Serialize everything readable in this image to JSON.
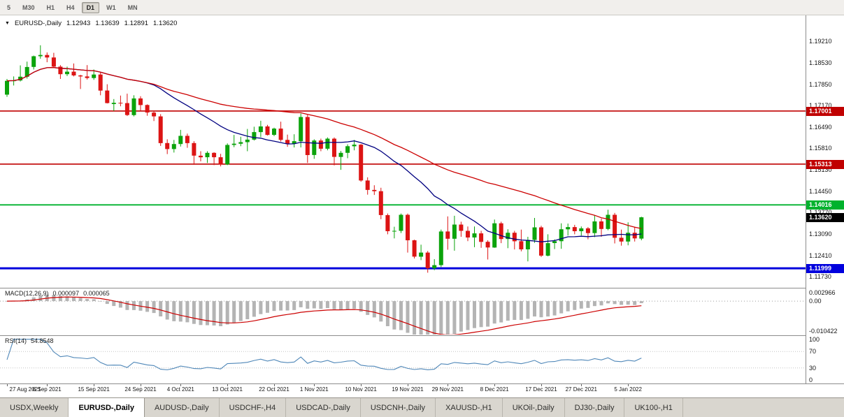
{
  "toolbar": {
    "timeframes": [
      {
        "label": "5",
        "active": false
      },
      {
        "label": "M30",
        "active": false
      },
      {
        "label": "H1",
        "active": false
      },
      {
        "label": "H4",
        "active": false
      },
      {
        "label": "D1",
        "active": true
      },
      {
        "label": "W1",
        "active": false
      },
      {
        "label": "MN",
        "active": false
      }
    ]
  },
  "chart_title": {
    "dropdown_icon": "▼",
    "symbol": "EURUSD-,Daily",
    "open": "1.12943",
    "high": "1.13639",
    "low": "1.12891",
    "close": "1.13620"
  },
  "macd_panel": {
    "label": "MACD(12,26,9)",
    "main_value": "0.000097",
    "signal_value": "0.000065",
    "axis_top": "0.002966",
    "axis_zero": "0.00",
    "axis_bottom": "-0.010422"
  },
  "rsi_panel": {
    "label": "RSI(14)",
    "value": "54.8548",
    "axis": [
      {
        "text": "100",
        "value": 100
      },
      {
        "text": "70",
        "value": 70
      },
      {
        "text": "30",
        "value": 30
      },
      {
        "text": "0",
        "value": 0
      }
    ]
  },
  "price_axis": {
    "ticks": [
      "1.19210",
      "1.18530",
      "1.17850",
      "1.17170",
      "1.16490",
      "1.15810",
      "1.15130",
      "1.14450",
      "1.13770",
      "1.13090",
      "1.12410",
      "1.11730"
    ]
  },
  "current_price": {
    "label": "1.13620",
    "value": 1.1362,
    "bg": "#000000"
  },
  "date_axis": [
    {
      "text": "27 Aug 2021",
      "i": 0
    },
    {
      "text": "6 Sep 2021",
      "i": 6
    },
    {
      "text": "15 Sep 2021",
      "i": 13
    },
    {
      "text": "24 Sep 2021",
      "i": 20
    },
    {
      "text": "4 Oct 2021",
      "i": 26
    },
    {
      "text": "13 Oct 2021",
      "i": 33
    },
    {
      "text": "22 Oct 2021",
      "i": 40
    },
    {
      "text": "1 Nov 2021",
      "i": 46
    },
    {
      "text": "10 Nov 2021",
      "i": 53
    },
    {
      "text": "19 Nov 2021",
      "i": 60
    },
    {
      "text": "29 Nov 2021",
      "i": 66
    },
    {
      "text": "8 Dec 2021",
      "i": 73
    },
    {
      "text": "17 Dec 2021",
      "i": 80
    },
    {
      "text": "27 Dec 2021",
      "i": 86
    },
    {
      "text": "5 Jan 2022",
      "i": 93
    }
  ],
  "tabs": [
    {
      "label": "USDX,Weekly",
      "active": false
    },
    {
      "label": "EURUSD-,Daily",
      "active": true
    },
    {
      "label": "AUDUSD-,Daily",
      "active": false
    },
    {
      "label": "USDCHF-,H4",
      "active": false
    },
    {
      "label": "USDCAD-,Daily",
      "active": false
    },
    {
      "label": "USDCNH-,Daily",
      "active": false
    },
    {
      "label": "XAUUSD-,H1",
      "active": false
    },
    {
      "label": "UKOil-,Daily",
      "active": false
    },
    {
      "label": "DJ30-,Daily",
      "active": false
    },
    {
      "label": "UK100-,H1",
      "active": false
    }
  ],
  "chart_data": {
    "type": "candlestick",
    "symbol": "EURUSD",
    "timeframe": "Daily",
    "ohlc_current": {
      "open": 1.12943,
      "high": 1.13639,
      "low": 1.12891,
      "close": 1.1362
    },
    "price_range": {
      "top": 1.2004,
      "bottom": 1.1138
    },
    "colors": {
      "up": "#0ba30b",
      "down": "#dc1414"
    },
    "moving_averages": [
      {
        "period": 20,
        "color": "#000080"
      },
      {
        "period": 45,
        "color": "#cc0000"
      }
    ],
    "levels": [
      {
        "price": 1.17001,
        "label": "1.17001",
        "color": "#c00000",
        "width": 1.6
      },
      {
        "price": 1.15313,
        "label": "1.15313",
        "color": "#c00000",
        "width": 1.6
      },
      {
        "price": 1.14016,
        "label": "1.14016",
        "color": "#00b22d",
        "width": 1.8
      },
      {
        "price": 1.11999,
        "label": "1.11999",
        "color": "#0000dd",
        "width": 3
      }
    ],
    "macd": {
      "fast": 12,
      "slow": 26,
      "signal": 9,
      "histogram_color": "#b4b4b4",
      "signal_color": "#cc0000",
      "range": {
        "max": 0.0032,
        "min": -0.0085
      }
    },
    "rsi": {
      "period": 14,
      "color": "#4f87b8",
      "levels": [
        70,
        30
      ]
    },
    "candles": [
      [
        1.1752,
        1.1802,
        1.1745,
        1.1796
      ],
      [
        1.1796,
        1.181,
        1.1781,
        1.1797
      ],
      [
        1.1797,
        1.1845,
        1.1794,
        1.1809
      ],
      [
        1.1809,
        1.1857,
        1.1803,
        1.184
      ],
      [
        1.184,
        1.1876,
        1.1832,
        1.1874
      ],
      [
        1.1874,
        1.1909,
        1.1866,
        1.1878
      ],
      [
        1.1878,
        1.1886,
        1.1855,
        1.187
      ],
      [
        1.187,
        1.1885,
        1.1838,
        1.1841
      ],
      [
        1.1841,
        1.1846,
        1.1802,
        1.1817
      ],
      [
        1.1817,
        1.1841,
        1.1811,
        1.1825
      ],
      [
        1.1825,
        1.1851,
        1.181,
        1.1813
      ],
      [
        1.1813,
        1.1815,
        1.177,
        1.181
      ],
      [
        1.181,
        1.1846,
        1.18,
        1.1805
      ],
      [
        1.1805,
        1.1832,
        1.1799,
        1.1816
      ],
      [
        1.1816,
        1.1822,
        1.175,
        1.1765
      ],
      [
        1.1765,
        1.1785,
        1.1724,
        1.1725
      ],
      [
        1.1722,
        1.1738,
        1.17,
        1.1726
      ],
      [
        1.1726,
        1.1749,
        1.1715,
        1.1725
      ],
      [
        1.1725,
        1.1755,
        1.1684,
        1.1687
      ],
      [
        1.1687,
        1.175,
        1.1683,
        1.174
      ],
      [
        1.174,
        1.1747,
        1.1701,
        1.1719
      ],
      [
        1.1719,
        1.1721,
        1.1685,
        1.1695
      ],
      [
        1.1695,
        1.17,
        1.1668,
        1.1683
      ],
      [
        1.1683,
        1.169,
        1.1589,
        1.1598
      ],
      [
        1.1598,
        1.161,
        1.1563,
        1.1579
      ],
      [
        1.1579,
        1.1608,
        1.1568,
        1.1595
      ],
      [
        1.1595,
        1.164,
        1.1587,
        1.1621
      ],
      [
        1.1621,
        1.1628,
        1.1583,
        1.1598
      ],
      [
        1.1598,
        1.1604,
        1.1529,
        1.1558
      ],
      [
        1.1558,
        1.1572,
        1.154,
        1.1553
      ],
      [
        1.1553,
        1.1572,
        1.1535,
        1.1567
      ],
      [
        1.1567,
        1.1569,
        1.1528,
        1.1553
      ],
      [
        1.1553,
        1.1564,
        1.1524,
        1.153
      ],
      [
        1.153,
        1.1597,
        1.1528,
        1.1592
      ],
      [
        1.1592,
        1.1624,
        1.1585,
        1.1596
      ],
      [
        1.1596,
        1.1618,
        1.1588,
        1.1601
      ],
      [
        1.1601,
        1.1643,
        1.1572,
        1.1609
      ],
      [
        1.1609,
        1.165,
        1.1606,
        1.1633
      ],
      [
        1.1633,
        1.1669,
        1.1617,
        1.1651
      ],
      [
        1.1651,
        1.1656,
        1.1622,
        1.1624
      ],
      [
        1.1624,
        1.1647,
        1.162,
        1.1644
      ],
      [
        1.1644,
        1.1666,
        1.1603,
        1.1608
      ],
      [
        1.1608,
        1.1625,
        1.1586,
        1.1596
      ],
      [
        1.1596,
        1.1626,
        1.1584,
        1.1604
      ],
      [
        1.1604,
        1.1692,
        1.1584,
        1.1681
      ],
      [
        1.1681,
        1.1688,
        1.1535,
        1.156
      ],
      [
        1.156,
        1.161,
        1.1548,
        1.1606
      ],
      [
        1.1606,
        1.1612,
        1.1572,
        1.158
      ],
      [
        1.158,
        1.1616,
        1.1575,
        1.1612
      ],
      [
        1.1612,
        1.1616,
        1.1527,
        1.1554
      ],
      [
        1.1554,
        1.1573,
        1.1513,
        1.1567
      ],
      [
        1.1567,
        1.1594,
        1.155,
        1.1588
      ],
      [
        1.1588,
        1.1608,
        1.1575,
        1.1593
      ],
      [
        1.1593,
        1.1595,
        1.1475,
        1.1479
      ],
      [
        1.1479,
        1.1489,
        1.1434,
        1.1449
      ],
      [
        1.1449,
        1.1464,
        1.1433,
        1.1445
      ],
      [
        1.1445,
        1.1456,
        1.1356,
        1.1369
      ],
      [
        1.1369,
        1.1374,
        1.1308,
        1.1318
      ],
      [
        1.1318,
        1.1332,
        1.1295,
        1.1319
      ],
      [
        1.1319,
        1.1374,
        1.1312,
        1.137
      ],
      [
        1.137,
        1.1374,
        1.125,
        1.1289
      ],
      [
        1.1289,
        1.1291,
        1.1231,
        1.1237
      ],
      [
        1.1237,
        1.1275,
        1.1226,
        1.125
      ],
      [
        1.125,
        1.1255,
        1.1186,
        1.12
      ],
      [
        1.12,
        1.1229,
        1.1194,
        1.121
      ],
      [
        1.121,
        1.1323,
        1.1204,
        1.1317
      ],
      [
        1.1317,
        1.1365,
        1.1259,
        1.1294
      ],
      [
        1.1294,
        1.1367,
        1.1256,
        1.1339
      ],
      [
        1.1339,
        1.1348,
        1.13,
        1.1319
      ],
      [
        1.1319,
        1.1333,
        1.1286,
        1.1298
      ],
      [
        1.1298,
        1.1333,
        1.1267,
        1.1311
      ],
      [
        1.1311,
        1.1319,
        1.1265,
        1.1284
      ],
      [
        1.1284,
        1.1289,
        1.1228,
        1.1266
      ],
      [
        1.1266,
        1.1355,
        1.1265,
        1.1343
      ],
      [
        1.1343,
        1.1348,
        1.128,
        1.1293
      ],
      [
        1.1293,
        1.1324,
        1.1264,
        1.1313
      ],
      [
        1.1313,
        1.1319,
        1.126,
        1.1286
      ],
      [
        1.1286,
        1.1323,
        1.1254,
        1.126
      ],
      [
        1.126,
        1.13,
        1.1222,
        1.129
      ],
      [
        1.129,
        1.136,
        1.1281,
        1.133
      ],
      [
        1.133,
        1.1335,
        1.1236,
        1.124
      ],
      [
        1.124,
        1.1308,
        1.1238,
        1.128
      ],
      [
        1.128,
        1.1292,
        1.1261,
        1.1286
      ],
      [
        1.1286,
        1.1343,
        1.1262,
        1.1324
      ],
      [
        1.1324,
        1.1342,
        1.1304,
        1.1331
      ],
      [
        1.1331,
        1.1338,
        1.1308,
        1.1318
      ],
      [
        1.1318,
        1.1333,
        1.1304,
        1.1327
      ],
      [
        1.1327,
        1.1331,
        1.1292,
        1.1312
      ],
      [
        1.1312,
        1.1369,
        1.1299,
        1.1349
      ],
      [
        1.1349,
        1.1358,
        1.13,
        1.1325
      ],
      [
        1.1325,
        1.1386,
        1.1321,
        1.137
      ],
      [
        1.137,
        1.1376,
        1.1279,
        1.1297
      ],
      [
        1.1297,
        1.1323,
        1.1272,
        1.1285
      ],
      [
        1.1285,
        1.1346,
        1.1273,
        1.1313
      ],
      [
        1.1313,
        1.1332,
        1.1285,
        1.1295
      ],
      [
        1.12943,
        1.13639,
        1.12891,
        1.1362
      ]
    ]
  }
}
